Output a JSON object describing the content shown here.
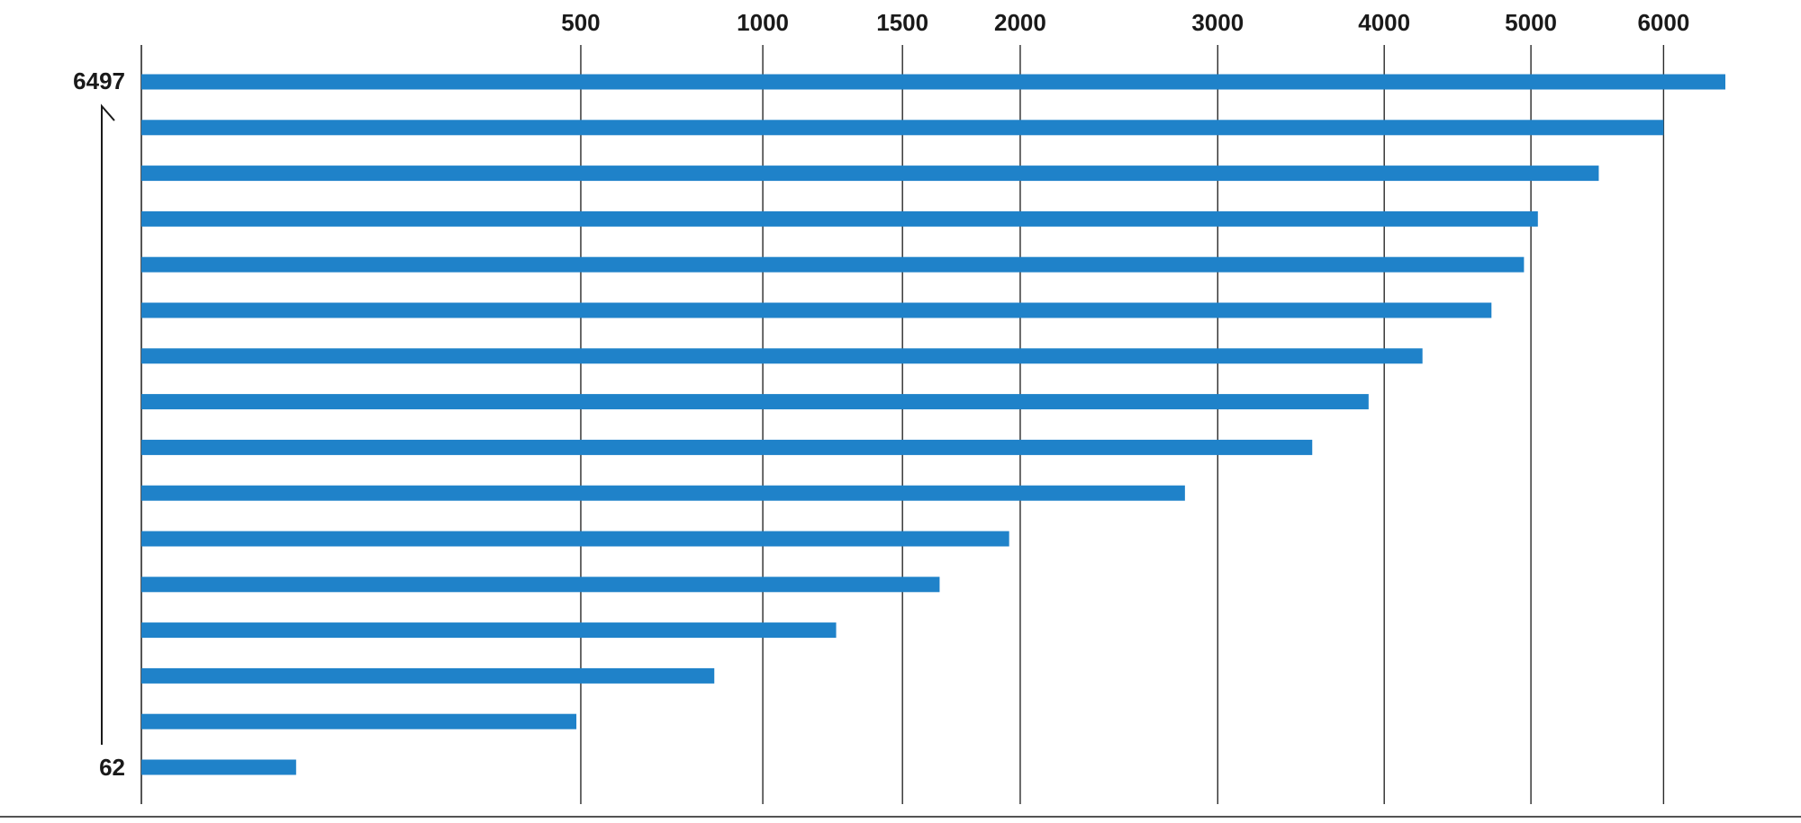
{
  "chart_data": {
    "type": "bar",
    "orientation": "horizontal",
    "axis": {
      "scale": "sqrt",
      "position": "top",
      "ticks": [
        500,
        1000,
        1500,
        2000,
        3000,
        4000,
        5000,
        6000
      ],
      "tick_labels": [
        "500",
        "1000",
        "1500",
        "2000",
        "3000",
        "4000",
        "5000",
        "6000"
      ],
      "domain": [
        0,
        6497
      ]
    },
    "values": [
      6497,
      6000,
      5500,
      5050,
      4950,
      4720,
      4250,
      3900,
      3550,
      2820,
      1950,
      1650,
      1250,
      850,
      490,
      62
    ],
    "range_labels": {
      "top": "6497",
      "bottom": "62"
    },
    "grid": true,
    "bar_color": "#1f82c9",
    "grid_color": "#2a2a2a"
  }
}
